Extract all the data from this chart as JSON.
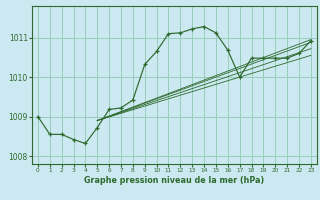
{
  "xlabel": "Graphe pression niveau de la mer (hPa)",
  "bg_color": "#cce8f0",
  "grid_color": "#99ccbb",
  "line_color": "#2d6a2d",
  "xlim": [
    -0.5,
    23.5
  ],
  "ylim": [
    1007.8,
    1011.8
  ],
  "yticks": [
    1008,
    1009,
    1010,
    1011
  ],
  "xticks": [
    0,
    1,
    2,
    3,
    4,
    5,
    6,
    7,
    8,
    9,
    10,
    11,
    12,
    13,
    14,
    15,
    16,
    17,
    18,
    19,
    20,
    21,
    22,
    23
  ],
  "main_x": [
    0,
    1,
    2,
    3,
    4,
    5,
    6,
    7,
    8,
    9,
    10,
    11,
    12,
    13,
    14,
    15,
    16,
    17,
    18,
    19,
    20,
    21,
    22,
    23
  ],
  "main_y": [
    1009.0,
    1008.55,
    1008.55,
    1008.42,
    1008.32,
    1008.72,
    1009.18,
    1009.22,
    1009.42,
    1010.32,
    1010.65,
    1011.1,
    1011.12,
    1011.22,
    1011.28,
    1011.12,
    1010.68,
    1010.0,
    1010.48,
    1010.48,
    1010.48,
    1010.48,
    1010.6,
    1010.92
  ],
  "ref_lines": [
    {
      "x": [
        5,
        23
      ],
      "y": [
        1008.9,
        1010.55
      ]
    },
    {
      "x": [
        5,
        23
      ],
      "y": [
        1008.9,
        1010.72
      ]
    },
    {
      "x": [
        5,
        23
      ],
      "y": [
        1008.9,
        1010.88
      ]
    },
    {
      "x": [
        5,
        23
      ],
      "y": [
        1008.9,
        1010.95
      ]
    }
  ]
}
